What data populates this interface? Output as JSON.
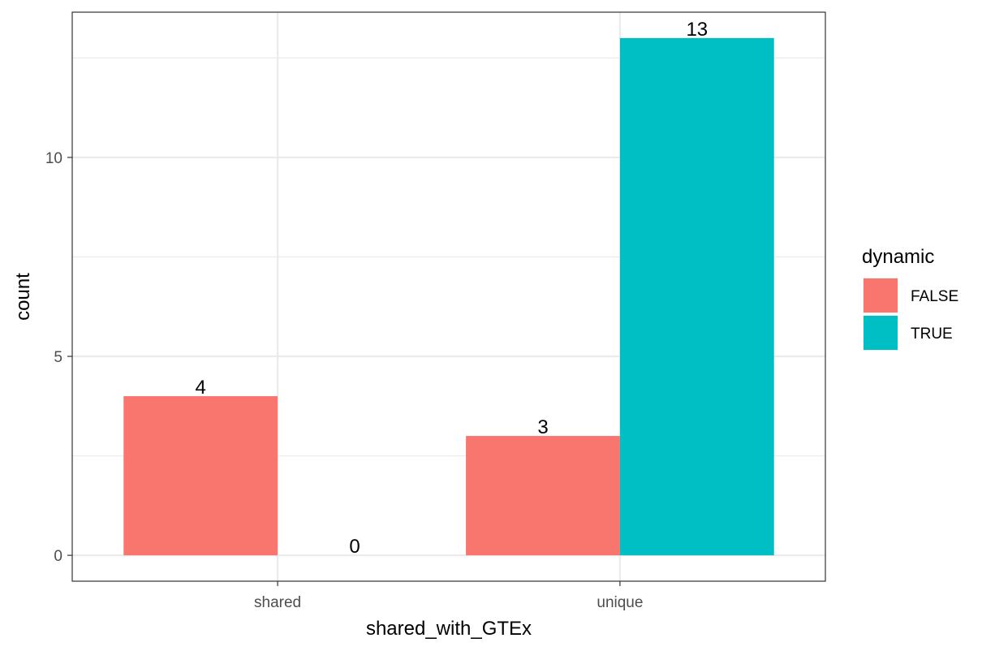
{
  "chart_data": {
    "type": "bar",
    "categories": [
      "shared",
      "unique"
    ],
    "series": [
      {
        "name": "FALSE",
        "values": [
          4,
          3
        ],
        "color": "#F8766D"
      },
      {
        "name": "TRUE",
        "values": [
          0,
          13
        ],
        "color": "#00BFC4"
      }
    ],
    "data_labels": [
      [
        "4",
        "0"
      ],
      [
        "3",
        "13"
      ]
    ],
    "xlabel": "shared_with_GTEx",
    "ylabel": "count",
    "ylim": [
      -0.65,
      13.65
    ],
    "yticks": [
      0,
      5,
      10
    ],
    "y_minor_ticks": [
      2.5,
      7.5,
      12.5
    ],
    "grid": true,
    "legend": {
      "title": "dynamic",
      "position": "right"
    },
    "theme": "bw"
  }
}
